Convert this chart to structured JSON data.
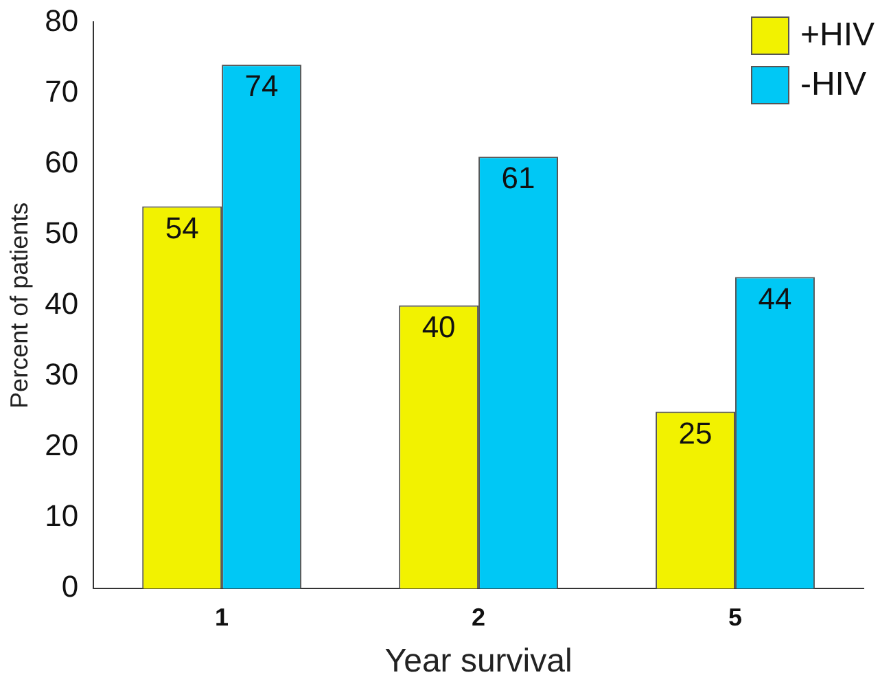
{
  "chart_data": {
    "type": "bar",
    "xlabel": "Year survival",
    "ylabel": "Percent of patients",
    "categories": [
      "1",
      "2",
      "5"
    ],
    "series": [
      {
        "name": "+HIV",
        "color": "#f2f200",
        "values": [
          54,
          40,
          25
        ]
      },
      {
        "name": "-HIV",
        "color": "#00c8f5",
        "values": [
          74,
          61,
          44
        ]
      }
    ],
    "ylim": [
      0,
      80
    ],
    "yticks": [
      0,
      10,
      20,
      30,
      40,
      50,
      60,
      70,
      80
    ],
    "grid": false,
    "legend": "top right",
    "data_labels": true
  }
}
